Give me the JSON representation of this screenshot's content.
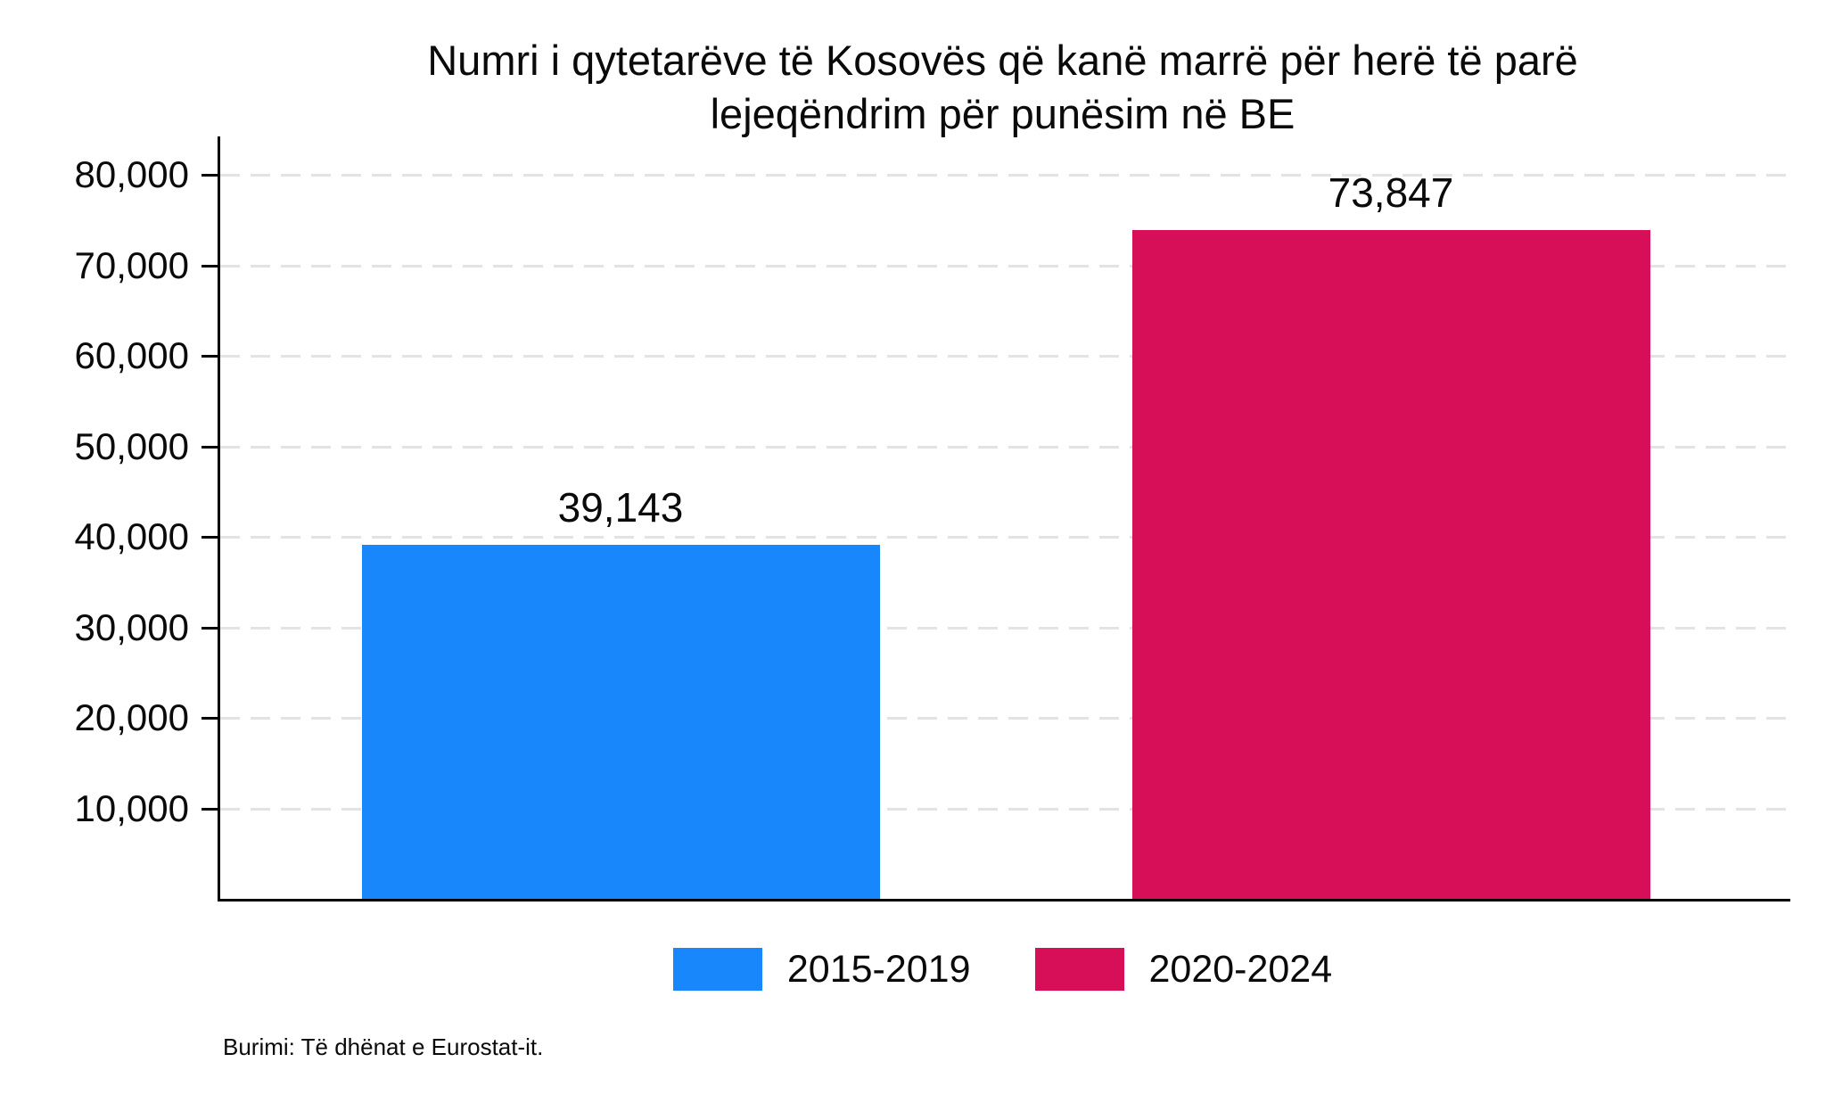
{
  "title_lines": [
    "Numri i qytetarëve të Kosovës që kanë marrë për herë të parë",
    "lejeqëndrim për punësim në BE"
  ],
  "chart_data": {
    "type": "bar",
    "title": "Numri i qytetarëve të Kosovës që kanë marrë për herë të parë lejeqëndrim për punësim në BE",
    "categories": [
      "2015-2019",
      "2020-2024"
    ],
    "values": [
      39143,
      73847
    ],
    "value_labels": [
      "39,143",
      "73,847"
    ],
    "bar_colors": [
      "#1787fb",
      "#d60f58"
    ],
    "xlabel": "",
    "ylabel": "",
    "ylim": [
      0,
      84000
    ],
    "yticks": [
      10000,
      20000,
      30000,
      40000,
      50000,
      60000,
      70000,
      80000
    ],
    "ytick_labels": [
      "10,000",
      "20,000",
      "30,000",
      "40,000",
      "50,000",
      "60,000",
      "70,000",
      "80,000"
    ],
    "grid": "horizontal-dashed",
    "grid_color": "#e3e3e3",
    "axis_color": "#000000",
    "legend_position": "bottom"
  },
  "legend": {
    "items": [
      {
        "label": "2015-2019",
        "color": "#1787fb"
      },
      {
        "label": "2020-2024",
        "color": "#d60f58"
      }
    ]
  },
  "source": "Burimi: Të dhënat e Eurostat-it."
}
